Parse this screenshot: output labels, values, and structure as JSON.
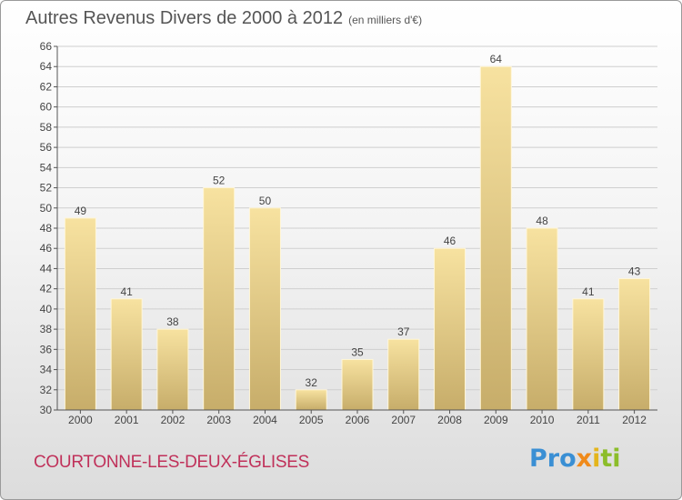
{
  "title": "Autres Revenus Divers de 2000 à 2012",
  "subtitle": "(en milliers d'€)",
  "commune": "COURTONNE-LES-DEUX-ÉGLISES",
  "logo": {
    "p1": "Pro",
    "p2": "x",
    "p3": "i",
    "p4": "ti"
  },
  "colors": {
    "bar_light": "#f7e2a0",
    "bar_dark": "#c7ad6a",
    "grid": "#cfcfcf",
    "axis": "#555555",
    "commune": "#c0315a"
  },
  "chart_data": {
    "type": "bar",
    "categories": [
      "2000",
      "2001",
      "2002",
      "2003",
      "2004",
      "2005",
      "2006",
      "2007",
      "2008",
      "2009",
      "2010",
      "2011",
      "2012"
    ],
    "values": [
      49,
      41,
      38,
      52,
      50,
      32,
      35,
      37,
      46,
      64,
      48,
      41,
      43
    ],
    "ylim": [
      30,
      66
    ],
    "ytick_step": 2,
    "grid": true,
    "data_labels": true
  }
}
